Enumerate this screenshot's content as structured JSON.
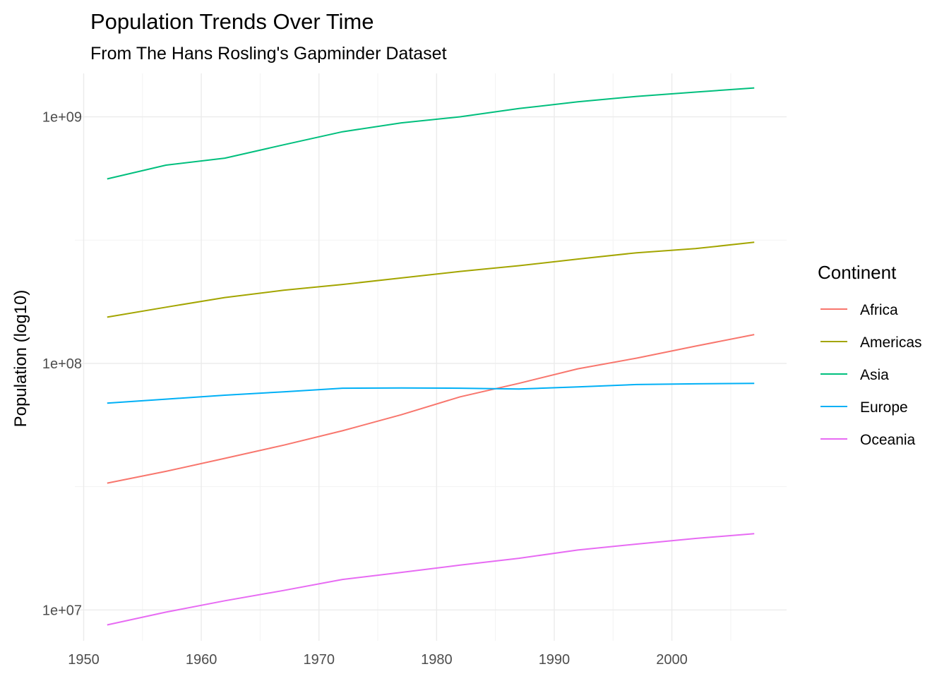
{
  "chart_data": {
    "type": "line",
    "title": "Population Trends Over Time",
    "subtitle": "From The Hans Rosling's Gapminder Dataset",
    "xlabel": "",
    "ylabel": "Population (log10)",
    "y_scale": "log10",
    "xlim": [
      1949.25,
      2009.75
    ],
    "ylim": [
      7500000,
      1500000000
    ],
    "x_ticks": [
      1950,
      1960,
      1970,
      1980,
      1990,
      2000
    ],
    "x_tick_labels": [
      "1950",
      "1960",
      "1970",
      "1980",
      "1990",
      "2000"
    ],
    "y_ticks": [
      10000000,
      100000000,
      1000000000
    ],
    "y_tick_labels": [
      "1e+07",
      "1e+08",
      "1e+09"
    ],
    "grid": true,
    "legend": {
      "title": "Continent",
      "position": "right"
    },
    "x": [
      1952,
      1957,
      1962,
      1967,
      1972,
      1977,
      1982,
      1987,
      1992,
      1997,
      2002,
      2007
    ],
    "series": [
      {
        "name": "Africa",
        "color": "#F8766D",
        "values": [
          32700000,
          36500000,
          41200000,
          46600000,
          53300000,
          61900000,
          73200000,
          83000000,
          95100000,
          105000000,
          117500000,
          130900000
        ]
      },
      {
        "name": "Americas",
        "color": "#A3A500",
        "values": [
          154000000,
          169000000,
          185000000,
          198000000,
          209000000,
          222000000,
          236000000,
          249000000,
          265000000,
          281000000,
          292000000,
          310000000
        ]
      },
      {
        "name": "Asia",
        "color": "#00BF7D",
        "values": [
          560000000,
          637000000,
          680000000,
          770000000,
          870000000,
          945000000,
          1000000000,
          1080000000,
          1150000000,
          1210000000,
          1260000000,
          1310000000
        ]
      },
      {
        "name": "Europe",
        "color": "#00B0F6",
        "values": [
          69000000,
          71600000,
          74300000,
          76700000,
          79300000,
          79500000,
          79300000,
          78700000,
          80300000,
          82100000,
          82600000,
          83000000
        ]
      },
      {
        "name": "Oceania",
        "color": "#E76BF3",
        "values": [
          8700000,
          9800000,
          10900000,
          12000000,
          13300000,
          14200000,
          15200000,
          16200000,
          17500000,
          18500000,
          19500000,
          20400000
        ]
      }
    ]
  }
}
